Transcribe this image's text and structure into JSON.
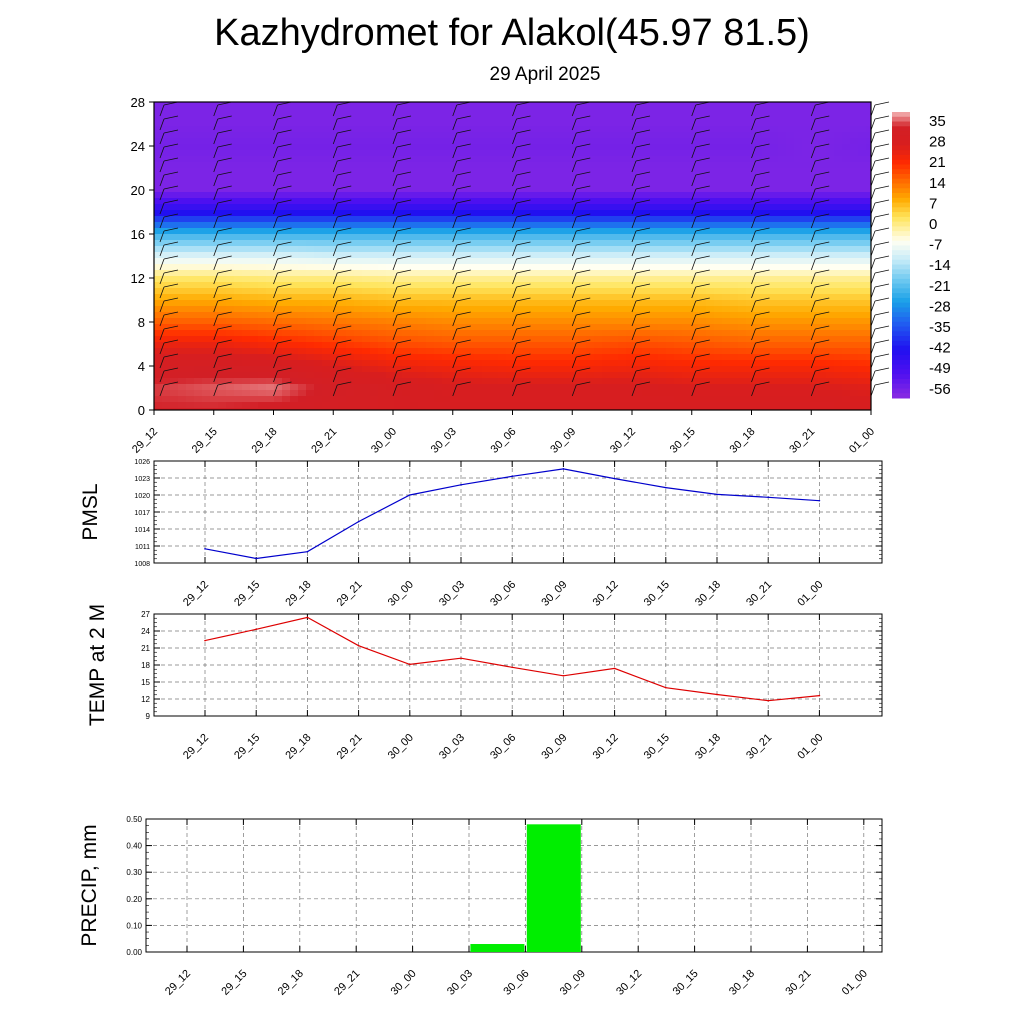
{
  "title": "Kazhydromet for Alakol(45.97 81.5)",
  "subtitle": "29 April 2025",
  "time_labels": [
    "29_12",
    "29_15",
    "29_18",
    "29_21",
    "30_00",
    "30_03",
    "30_06",
    "30_09",
    "30_12",
    "30_15",
    "30_18",
    "30_21",
    "01_00"
  ],
  "colors": {
    "pmsl_line": "#0000cc",
    "temp_line": "#dd0000",
    "precip_bar": "#00ee00",
    "grid": "#000000"
  },
  "chart_data": [
    {
      "type": "heatmap",
      "panel": "temperature-cross-section",
      "x": [
        "29_12",
        "29_15",
        "29_18",
        "29_21",
        "30_00",
        "30_03",
        "30_06",
        "30_09",
        "30_12",
        "30_15",
        "30_18",
        "30_21",
        "01_00"
      ],
      "yticks": [
        0,
        4,
        8,
        12,
        16,
        20,
        24,
        28
      ],
      "ylim": [
        0,
        28
      ],
      "levels": [
        0,
        2,
        4,
        6,
        8,
        10,
        12,
        14,
        16,
        18,
        20,
        22,
        24,
        26,
        28
      ],
      "colorbar": {
        "labels": [
          "35",
          "28",
          "21",
          "14",
          "7",
          "0",
          "-7",
          "-14",
          "-21",
          "-28",
          "-35",
          "-42",
          "-49",
          "-56"
        ],
        "stops": [
          {
            "v": 35,
            "c": "#f4b8b8"
          },
          {
            "v": 30,
            "c": "#d21f26"
          },
          {
            "v": 24,
            "c": "#d81e1e"
          },
          {
            "v": 18,
            "c": "#ff2a00"
          },
          {
            "v": 12,
            "c": "#ff6a00"
          },
          {
            "v": 6,
            "c": "#ffaa00"
          },
          {
            "v": 0,
            "c": "#ffe45a"
          },
          {
            "v": -8,
            "c": "#fffff2"
          },
          {
            "v": -14,
            "c": "#c8ecf8"
          },
          {
            "v": -21,
            "c": "#6cc8f0"
          },
          {
            "v": -28,
            "c": "#1aa0e8"
          },
          {
            "v": -35,
            "c": "#2060f0"
          },
          {
            "v": -44,
            "c": "#2010f0"
          },
          {
            "v": -52,
            "c": "#5010f0"
          },
          {
            "v": -60,
            "c": "#8a2be2"
          }
        ]
      },
      "values": [
        [
          30,
          30,
          29,
          28,
          27,
          26,
          26,
          26,
          26,
          26,
          26,
          26,
          25
        ],
        [
          31,
          32,
          33,
          29,
          27,
          25,
          25,
          25,
          25,
          24,
          24,
          24,
          23
        ],
        [
          28,
          28,
          27,
          24,
          21,
          20,
          19,
          19,
          20,
          19,
          19,
          19,
          18
        ],
        [
          21,
          21,
          19,
          17,
          15,
          14,
          14,
          14,
          15,
          14,
          13,
          13,
          13
        ],
        [
          13,
          13,
          12,
          11,
          10,
          9,
          9,
          9,
          9,
          9,
          8,
          8,
          8
        ],
        [
          6,
          6,
          5,
          5,
          4,
          4,
          4,
          4,
          4,
          4,
          3,
          3,
          3
        ],
        [
          -1,
          -1,
          -2,
          -2,
          -3,
          -3,
          -3,
          -3,
          -3,
          -3,
          -3,
          -3,
          -3
        ],
        [
          -12,
          -12,
          -12,
          -13,
          -13,
          -13,
          -13,
          -13,
          -13,
          -13,
          -13,
          -13,
          -13
        ],
        [
          -25,
          -25,
          -25,
          -25,
          -25,
          -25,
          -25,
          -25,
          -25,
          -25,
          -25,
          -25,
          -25
        ],
        [
          -45,
          -45,
          -45,
          -45,
          -45,
          -45,
          -45,
          -45,
          -45,
          -45,
          -45,
          -45,
          -45
        ],
        [
          -58,
          -58,
          -58,
          -58,
          -58,
          -58,
          -58,
          -58,
          -58,
          -58,
          -58,
          -58,
          -58
        ],
        [
          -58,
          -58,
          -58,
          -58,
          -58,
          -58,
          -58,
          -58,
          -58,
          -58,
          -58,
          -58,
          -58
        ],
        [
          -57,
          -57,
          -57,
          -57,
          -57,
          -57,
          -57,
          -57,
          -57,
          -57,
          -57,
          -58,
          -57
        ],
        [
          -58,
          -58,
          -58,
          -58,
          -58,
          -58,
          -58,
          -58,
          -58,
          -58,
          -58,
          -58,
          -58
        ],
        [
          -58,
          -58,
          -58,
          -58,
          -58,
          -58,
          -58,
          -58,
          -58,
          -58,
          -58,
          -58,
          -58
        ]
      ]
    },
    {
      "type": "line",
      "panel": "pmsl",
      "ylabel": "PMSL",
      "x": [
        "29_12",
        "29_15",
        "29_18",
        "29_21",
        "30_00",
        "30_03",
        "30_06",
        "30_09",
        "30_12",
        "30_15",
        "30_18",
        "30_21",
        "01_00"
      ],
      "values": [
        1010.5,
        1008.8,
        1010.0,
        1015.3,
        1020.0,
        1021.8,
        1023.3,
        1024.6,
        1022.9,
        1021.3,
        1020.1,
        1019.6,
        1019.0
      ],
      "ylim": [
        1008,
        1026
      ],
      "yticks": [
        "1008",
        "1011",
        "1014",
        "1017",
        "1020",
        "1023",
        "1026"
      ],
      "grid": true
    },
    {
      "type": "line",
      "panel": "temperature-2m",
      "ylabel": "TEMP at 2 M",
      "x": [
        "29_12",
        "29_15",
        "29_18",
        "29_21",
        "30_00",
        "30_03",
        "30_06",
        "30_09",
        "30_12",
        "30_15",
        "30_18",
        "30_21",
        "01_00"
      ],
      "values": [
        22.3,
        24.3,
        26.4,
        21.4,
        18.1,
        19.2,
        17.6,
        16.1,
        17.4,
        14.0,
        12.8,
        11.7,
        12.6
      ],
      "ylim": [
        9,
        27
      ],
      "yticks": [
        "9",
        "12",
        "15",
        "18",
        "21",
        "24",
        "27"
      ],
      "grid": true
    },
    {
      "type": "bar",
      "panel": "precipitation",
      "ylabel": "PRECIP, mm",
      "categories": [
        "29_12",
        "29_15",
        "29_18",
        "29_21",
        "30_00",
        "30_03",
        "30_06",
        "30_09",
        "30_12",
        "30_15",
        "30_18",
        "30_21",
        "01_00"
      ],
      "values": [
        0,
        0,
        0,
        0,
        0,
        0,
        0.03,
        0.48,
        0,
        0,
        0,
        0,
        0
      ],
      "ylim": [
        0,
        0.5
      ],
      "yticks": [
        "0.00",
        "0.10",
        "0.20",
        "0.30",
        "0.40",
        "0.50"
      ],
      "grid": true
    }
  ]
}
